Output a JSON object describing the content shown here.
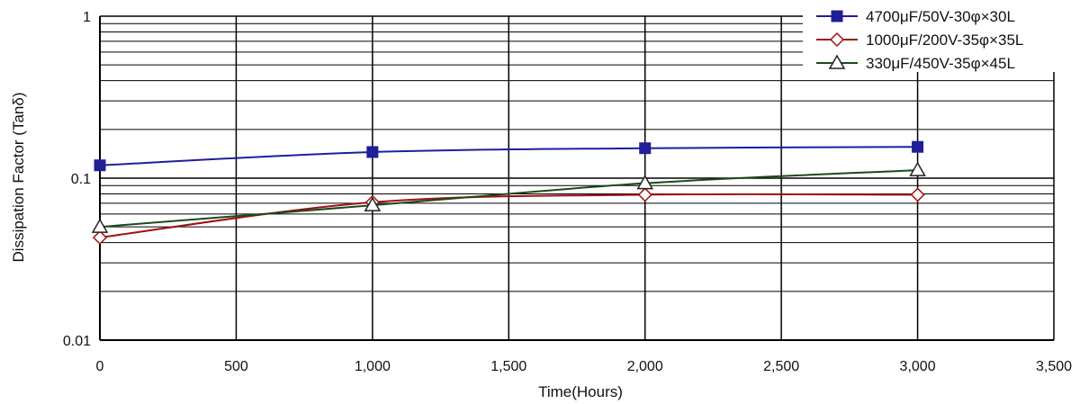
{
  "chart_data": {
    "type": "line",
    "title": "",
    "xlabel": "Time(Hours)",
    "ylabel": "Dissipation Factor (Tanδ)",
    "xlim": [
      0,
      3500
    ],
    "ylim": [
      0.01,
      1
    ],
    "yscale": "log",
    "grid": true,
    "legend_position": "top-right",
    "x_ticks": [
      0,
      500,
      1000,
      1500,
      2000,
      2500,
      3000,
      3500
    ],
    "x_tick_labels": [
      "0",
      "500",
      "1,000",
      "1,500",
      "2,000",
      "2,500",
      "3,000",
      "3,500"
    ],
    "y_ticks": [
      0.01,
      0.1,
      1
    ],
    "y_tick_labels": [
      "0.01",
      "0.1",
      "1"
    ],
    "series": [
      {
        "name": "4700μF/50V-30φ×30L",
        "color": "#1f1f99",
        "marker": "filled-square",
        "x": [
          0,
          1000,
          2000,
          3000
        ],
        "y": [
          0.12,
          0.145,
          0.153,
          0.156
        ]
      },
      {
        "name": "1000μF/200V-35φ×35L",
        "color": "#a01010",
        "marker": "open-diamond",
        "x": [
          0,
          1000,
          2000,
          3000
        ],
        "y": [
          0.043,
          0.071,
          0.079,
          0.079
        ]
      },
      {
        "name": "330μF/450V-35φ×45L",
        "color": "#1a4a1a",
        "marker": "open-triangle",
        "x": [
          0,
          1000,
          2000,
          3000
        ],
        "y": [
          0.05,
          0.068,
          0.093,
          0.112
        ]
      }
    ]
  }
}
